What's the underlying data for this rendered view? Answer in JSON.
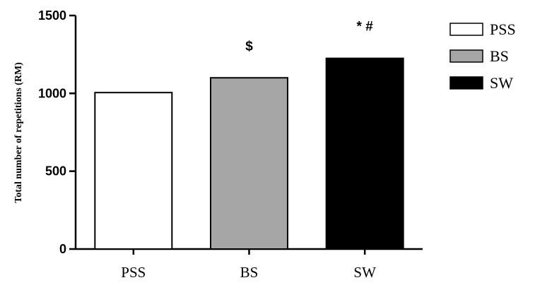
{
  "chart_data": {
    "type": "bar",
    "title": "",
    "xlabel": "",
    "ylabel": "Total number of repetitions (RM)",
    "categories": [
      "PSS",
      "BS",
      "SW"
    ],
    "values": [
      1005,
      1100,
      1225
    ],
    "colors": [
      "#ffffff",
      "#a6a6a6",
      "#000000"
    ],
    "edge_color": "#000000",
    "ylim": [
      0,
      1500
    ],
    "yticks": [
      0,
      500,
      1000,
      1500
    ],
    "ytick_labels": [
      "0",
      "500",
      "1000",
      "1500"
    ],
    "grid": false,
    "legend": {
      "placement": "top-right",
      "entries": [
        "PSS",
        "BS",
        "SW"
      ]
    },
    "annotations": [
      "",
      "$",
      "* #"
    ]
  }
}
